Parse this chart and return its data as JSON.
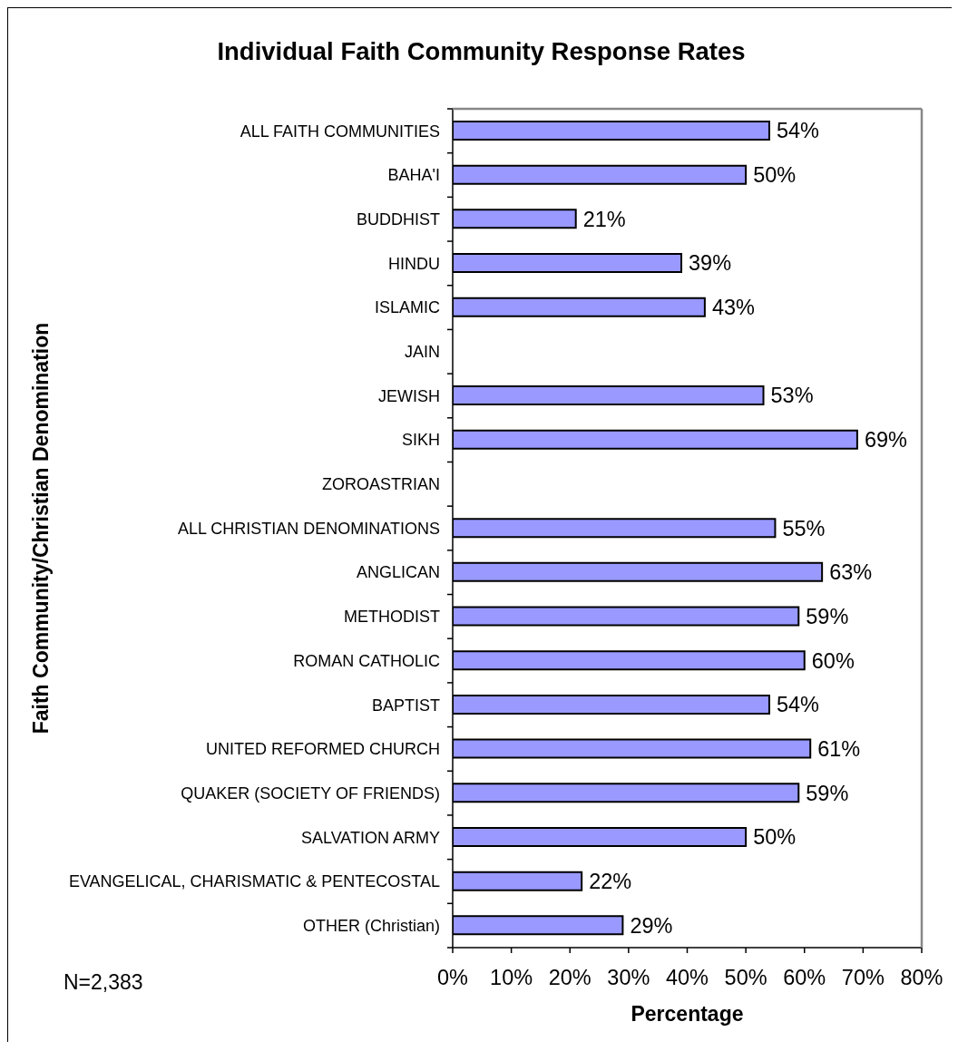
{
  "chart_data": {
    "type": "bar",
    "orientation": "horizontal",
    "title": "Individual Faith Community Response Rates",
    "xlabel": "Percentage",
    "ylabel": "Faith Community/Christian Denomination",
    "categories": [
      "ALL FAITH COMMUNITIES",
      "BAHA'I",
      "BUDDHIST",
      "HINDU",
      "ISLAMIC",
      "JAIN",
      "JEWISH",
      "SIKH",
      "ZOROASTRIAN",
      "ALL CHRISTIAN DENOMINATIONS",
      "ANGLICAN",
      "METHODIST",
      "ROMAN CATHOLIC",
      "BAPTIST",
      "UNITED REFORMED CHURCH",
      "QUAKER (SOCIETY OF FRIENDS)",
      "SALVATION ARMY",
      "EVANGELICAL, CHARISMATIC & PENTECOSTAL",
      "OTHER (Christian)"
    ],
    "values": [
      54,
      50,
      21,
      39,
      43,
      null,
      53,
      69,
      null,
      55,
      63,
      59,
      60,
      54,
      61,
      59,
      50,
      22,
      29
    ],
    "value_labels": [
      "54%",
      "50%",
      "21%",
      "39%",
      "43%",
      null,
      "53%",
      "69%",
      null,
      "55%",
      "63%",
      "59%",
      "60%",
      "54%",
      "61%",
      "59%",
      "50%",
      "22%",
      "29%"
    ],
    "color": "#9999ff",
    "xlim": [
      0,
      80
    ],
    "xticks": [
      {
        "value": 0,
        "label": "0%"
      },
      {
        "value": 10,
        "label": "10%"
      },
      {
        "value": 20,
        "label": "20%"
      },
      {
        "value": 30,
        "label": "30%"
      },
      {
        "value": 40,
        "label": "40%"
      },
      {
        "value": 50,
        "label": "50%"
      },
      {
        "value": 60,
        "label": "60%"
      },
      {
        "value": 70,
        "label": "70%"
      },
      {
        "value": 80,
        "label": "80%"
      }
    ],
    "annotations": [
      "N=2,383"
    ]
  }
}
